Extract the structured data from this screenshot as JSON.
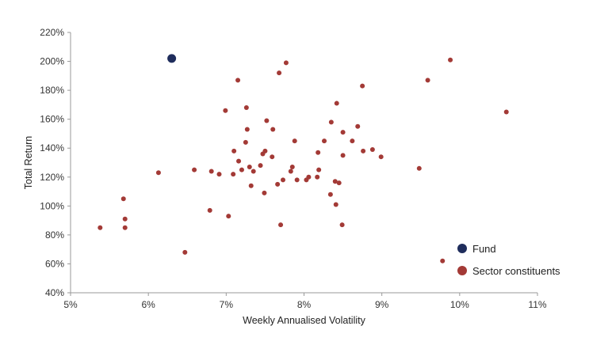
{
  "chart_data": {
    "type": "scatter",
    "xlabel": "Weekly Annualised Volatility",
    "ylabel": "Total Return",
    "xlim": [
      5,
      11
    ],
    "ylim": [
      40,
      220
    ],
    "x_ticks": [
      5,
      6,
      7,
      8,
      9,
      10,
      11
    ],
    "y_ticks": [
      40,
      60,
      80,
      100,
      120,
      140,
      160,
      180,
      200,
      220
    ],
    "x_tick_labels": [
      "5%",
      "6%",
      "7%",
      "8%",
      "9%",
      "10%",
      "11%"
    ],
    "y_tick_labels": [
      "40%",
      "60%",
      "80%",
      "100%",
      "120%",
      "140%",
      "160%",
      "180%",
      "200%",
      "220%"
    ],
    "grid": false,
    "legend_position": "bottom-right",
    "series": [
      {
        "name": "Fund",
        "color": "#1f2d5c",
        "points": [
          [
            6.3,
            202
          ]
        ]
      },
      {
        "name": "Sector constituents",
        "color": "#a33a36",
        "points": [
          [
            5.38,
            85
          ],
          [
            5.68,
            105
          ],
          [
            5.7,
            91
          ],
          [
            5.7,
            85
          ],
          [
            6.13,
            123
          ],
          [
            6.47,
            68
          ],
          [
            6.59,
            125
          ],
          [
            6.79,
            97
          ],
          [
            6.81,
            124
          ],
          [
            6.91,
            122
          ],
          [
            6.99,
            166
          ],
          [
            7.03,
            93
          ],
          [
            7.09,
            122
          ],
          [
            7.1,
            138
          ],
          [
            7.15,
            187
          ],
          [
            7.16,
            131
          ],
          [
            7.2,
            125
          ],
          [
            7.25,
            144
          ],
          [
            7.26,
            168
          ],
          [
            7.27,
            153
          ],
          [
            7.3,
            127
          ],
          [
            7.32,
            114
          ],
          [
            7.35,
            124
          ],
          [
            7.44,
            128
          ],
          [
            7.47,
            136
          ],
          [
            7.49,
            109
          ],
          [
            7.5,
            138
          ],
          [
            7.52,
            159
          ],
          [
            7.59,
            134
          ],
          [
            7.6,
            153
          ],
          [
            7.66,
            115
          ],
          [
            7.68,
            192
          ],
          [
            7.7,
            87
          ],
          [
            7.73,
            118
          ],
          [
            7.77,
            199
          ],
          [
            7.83,
            124
          ],
          [
            7.85,
            127
          ],
          [
            7.88,
            145
          ],
          [
            7.91,
            118
          ],
          [
            8.03,
            118
          ],
          [
            8.06,
            120
          ],
          [
            8.17,
            120
          ],
          [
            8.18,
            137
          ],
          [
            8.19,
            125
          ],
          [
            8.26,
            145
          ],
          [
            8.34,
            108
          ],
          [
            8.35,
            158
          ],
          [
            8.4,
            117
          ],
          [
            8.41,
            101
          ],
          [
            8.42,
            171
          ],
          [
            8.45,
            116
          ],
          [
            8.49,
            87
          ],
          [
            8.5,
            135
          ],
          [
            8.5,
            151
          ],
          [
            8.62,
            145
          ],
          [
            8.69,
            155
          ],
          [
            8.75,
            183
          ],
          [
            8.76,
            138
          ],
          [
            8.88,
            139
          ],
          [
            8.99,
            134
          ],
          [
            9.48,
            126
          ],
          [
            9.78,
            62
          ],
          [
            9.59,
            187
          ],
          [
            9.88,
            201
          ],
          [
            10.6,
            165
          ]
        ]
      }
    ]
  }
}
